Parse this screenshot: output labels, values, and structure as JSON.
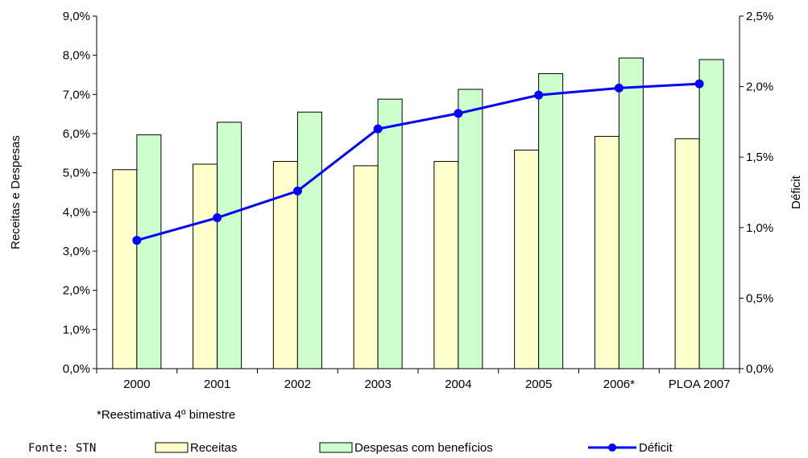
{
  "chart_data": {
    "type": "bar",
    "categories": [
      "2000",
      "2001",
      "2002",
      "2003",
      "2004",
      "2005",
      "2006*",
      "PLOA 2007"
    ],
    "series": [
      {
        "name": "Receitas",
        "kind": "bar",
        "axis": "left",
        "color": "#FFFFCC",
        "values": [
          5.08,
          5.22,
          5.29,
          5.18,
          5.29,
          5.58,
          5.93,
          5.87
        ]
      },
      {
        "name": "Despesas com benefícios",
        "kind": "bar",
        "axis": "left",
        "color": "#CCFFCC",
        "values": [
          5.97,
          6.29,
          6.55,
          6.88,
          7.13,
          7.53,
          7.93,
          7.89
        ]
      },
      {
        "name": "Déficit",
        "kind": "line",
        "axis": "right",
        "color": "#0000FF",
        "values": [
          0.91,
          1.07,
          1.26,
          1.7,
          1.81,
          1.94,
          1.99,
          2.02
        ]
      }
    ],
    "ylabel": "Receitas e Despesas",
    "y2label": "Déficit",
    "ylim": [
      0,
      9
    ],
    "y2lim": [
      0,
      2.5
    ],
    "yticks": [
      "0,0%",
      "1,0%",
      "2,0%",
      "3,0%",
      "4,0%",
      "5,0%",
      "6,0%",
      "7,0%",
      "8,0%",
      "9,0%"
    ],
    "y2ticks": [
      "0,0%",
      "0,5%",
      "1,0%",
      "1,5%",
      "2,0%",
      "2,5%"
    ],
    "grid": false,
    "legend_position": "bottom"
  },
  "footnote": "*Reestimativa 4º bimestre",
  "source": "Fonte: STN"
}
